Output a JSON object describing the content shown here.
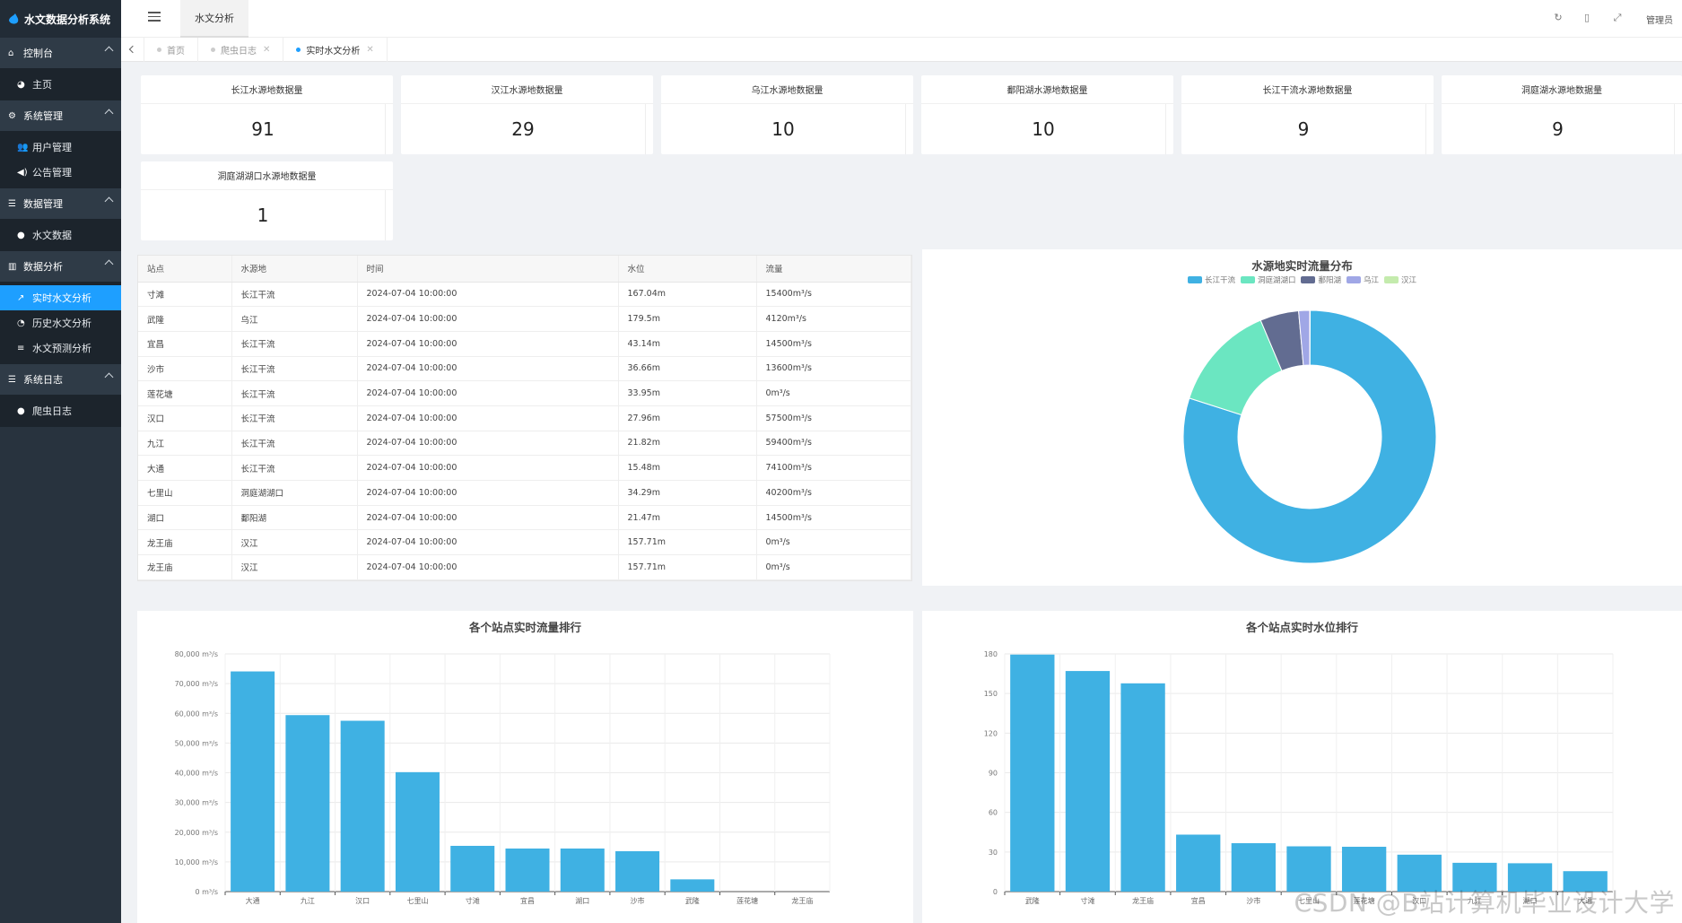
{
  "app": {
    "title": "水文数据分析系统"
  },
  "sidebar": {
    "groups": [
      {
        "label": "控制台",
        "items": [
          {
            "label": "主页",
            "icon": "palette-icon"
          }
        ]
      },
      {
        "label": "系统管理",
        "items": [
          {
            "label": "用户管理"
          },
          {
            "label": "公告管理"
          }
        ]
      },
      {
        "label": "数据管理",
        "items": [
          {
            "label": "水文数据"
          }
        ]
      },
      {
        "label": "数据分析",
        "items": [
          {
            "label": "实时水文分析"
          },
          {
            "label": "历史水文分析"
          },
          {
            "label": "水文预测分析"
          }
        ]
      },
      {
        "label": "系统日志",
        "items": [
          {
            "label": "爬虫日志"
          }
        ]
      }
    ]
  },
  "topbar": {
    "nav_label": "水文分析",
    "admin_label": "管理员"
  },
  "tabs": [
    {
      "label": "首页"
    },
    {
      "label": "爬虫日志"
    },
    {
      "label": "实时水文分析"
    }
  ],
  "cards": [
    {
      "title": "长江水源地数据量",
      "value": "91"
    },
    {
      "title": "汉江水源地数据量",
      "value": "29"
    },
    {
      "title": "乌江水源地数据量",
      "value": "10"
    },
    {
      "title": "鄱阳湖水源地数据量",
      "value": "10"
    },
    {
      "title": "长江干流水源地数据量",
      "value": "9"
    },
    {
      "title": "洞庭湖水源地数据量",
      "value": "9"
    },
    {
      "title": "洞庭湖湖口水源地数据量",
      "value": "1"
    }
  ],
  "table": {
    "headers": [
      "站点",
      "水源地",
      "时间",
      "水位",
      "流量"
    ],
    "rows": [
      [
        "寸滩",
        "长江干流",
        "2024-07-04 10:00:00",
        "167.04m",
        "15400m³/s"
      ],
      [
        "武隆",
        "乌江",
        "2024-07-04 10:00:00",
        "179.5m",
        "4120m³/s"
      ],
      [
        "宜昌",
        "长江干流",
        "2024-07-04 10:00:00",
        "43.14m",
        "14500m³/s"
      ],
      [
        "沙市",
        "长江干流",
        "2024-07-04 10:00:00",
        "36.66m",
        "13600m³/s"
      ],
      [
        "莲花塘",
        "长江干流",
        "2024-07-04 10:00:00",
        "33.95m",
        "0m³/s"
      ],
      [
        "汉口",
        "长江干流",
        "2024-07-04 10:00:00",
        "27.96m",
        "57500m³/s"
      ],
      [
        "九江",
        "长江干流",
        "2024-07-04 10:00:00",
        "21.82m",
        "59400m³/s"
      ],
      [
        "大通",
        "长江干流",
        "2024-07-04 10:00:00",
        "15.48m",
        "74100m³/s"
      ],
      [
        "七里山",
        "洞庭湖湖口",
        "2024-07-04 10:00:00",
        "34.29m",
        "40200m³/s"
      ],
      [
        "湖口",
        "鄱阳湖",
        "2024-07-04 10:00:00",
        "21.47m",
        "14500m³/s"
      ],
      [
        "龙王庙",
        "汉江",
        "2024-07-04 10:00:00",
        "157.71m",
        "0m³/s"
      ],
      [
        "龙王庙",
        "汉江",
        "2024-07-04 10:00:00",
        "157.71m",
        "0m³/s"
      ]
    ]
  },
  "colors": {
    "accent": "#1e9fff",
    "bar": "#3fb1e3"
  },
  "chart_data": [
    {
      "type": "pie",
      "title": "水源地实时流量分布",
      "donut": true,
      "legend_position": "top",
      "categories": [
        "长江干流",
        "洞庭湖湖口",
        "鄱阳湖",
        "乌江",
        "汉江"
      ],
      "values": [
        234500,
        40200,
        14500,
        4120,
        0
      ],
      "colors": [
        "#3fb1e3",
        "#6be6c1",
        "#626c91",
        "#a0a7e6",
        "#c4ebad"
      ]
    },
    {
      "type": "bar",
      "title": "各个站点实时流量排行",
      "categories": [
        "大通",
        "九江",
        "汉口",
        "七里山",
        "寸滩",
        "宜昌",
        "湖口",
        "沙市",
        "武隆",
        "莲花塘",
        "龙王庙"
      ],
      "values": [
        74100,
        59400,
        57500,
        40200,
        15400,
        14500,
        14500,
        13600,
        4120,
        0,
        0
      ],
      "ylim": [
        0,
        80000
      ],
      "yticks": [
        "0 m³/s",
        "10,000 m³/s",
        "20,000 m³/s",
        "30,000 m³/s",
        "40,000 m³/s",
        "50,000 m³/s",
        "60,000 m³/s",
        "70,000 m³/s",
        "80,000 m³/s"
      ]
    },
    {
      "type": "bar",
      "title": "各个站点实时水位排行",
      "categories": [
        "武隆",
        "寸滩",
        "龙王庙",
        "宜昌",
        "沙市",
        "七里山",
        "莲花塘",
        "汉口",
        "九江",
        "湖口",
        "大通"
      ],
      "values": [
        179.5,
        167.04,
        157.71,
        43.14,
        36.66,
        34.29,
        33.95,
        27.96,
        21.82,
        21.47,
        15.48
      ],
      "ylim": [
        0,
        180
      ],
      "yticks": [
        "0",
        "30",
        "60",
        "90",
        "120",
        "150",
        "180"
      ]
    }
  ],
  "watermark": "CSDN @B站计算机毕业设计大学"
}
